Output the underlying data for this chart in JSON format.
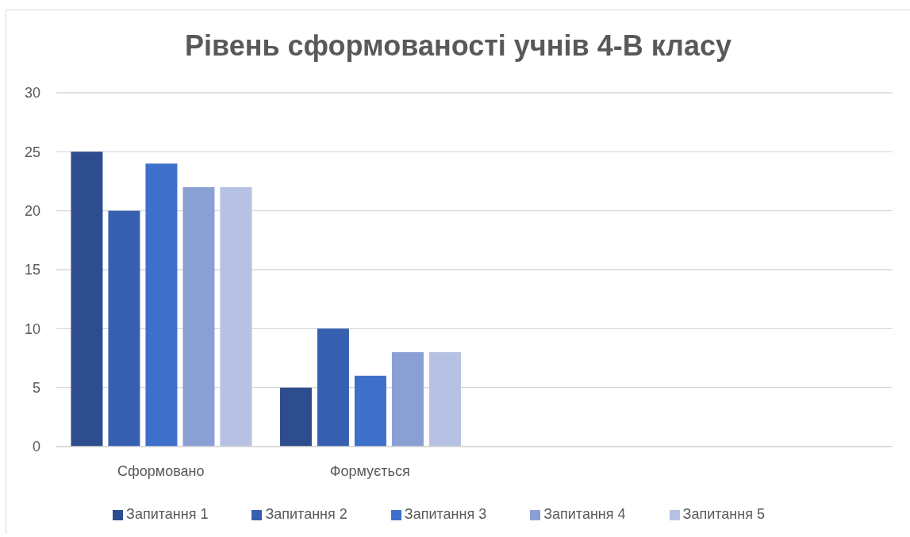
{
  "chart_data": {
    "type": "bar",
    "title": "Рівень сформованості учнів 4-В класу",
    "categories": [
      "Сформовано",
      "Формується",
      null,
      null
    ],
    "series": [
      {
        "name": "Запитання 1",
        "color": "#2e4d8f",
        "values": [
          25,
          5,
          null,
          null
        ]
      },
      {
        "name": "Запитання 2",
        "color": "#3760b0",
        "values": [
          20,
          10,
          null,
          null
        ]
      },
      {
        "name": "Запитання 3",
        "color": "#3e6fca",
        "values": [
          24,
          6,
          null,
          null
        ]
      },
      {
        "name": "Запитання 4",
        "color": "#8a9fd4",
        "values": [
          22,
          8,
          null,
          null
        ]
      },
      {
        "name": "Запитання 5",
        "color": "#b6c1e3",
        "values": [
          22,
          8,
          null,
          null
        ]
      }
    ],
    "ylim": [
      0,
      30
    ],
    "yticks": [
      0,
      5,
      10,
      15,
      20,
      25,
      30
    ],
    "grid": "y",
    "legend": "bottom"
  }
}
